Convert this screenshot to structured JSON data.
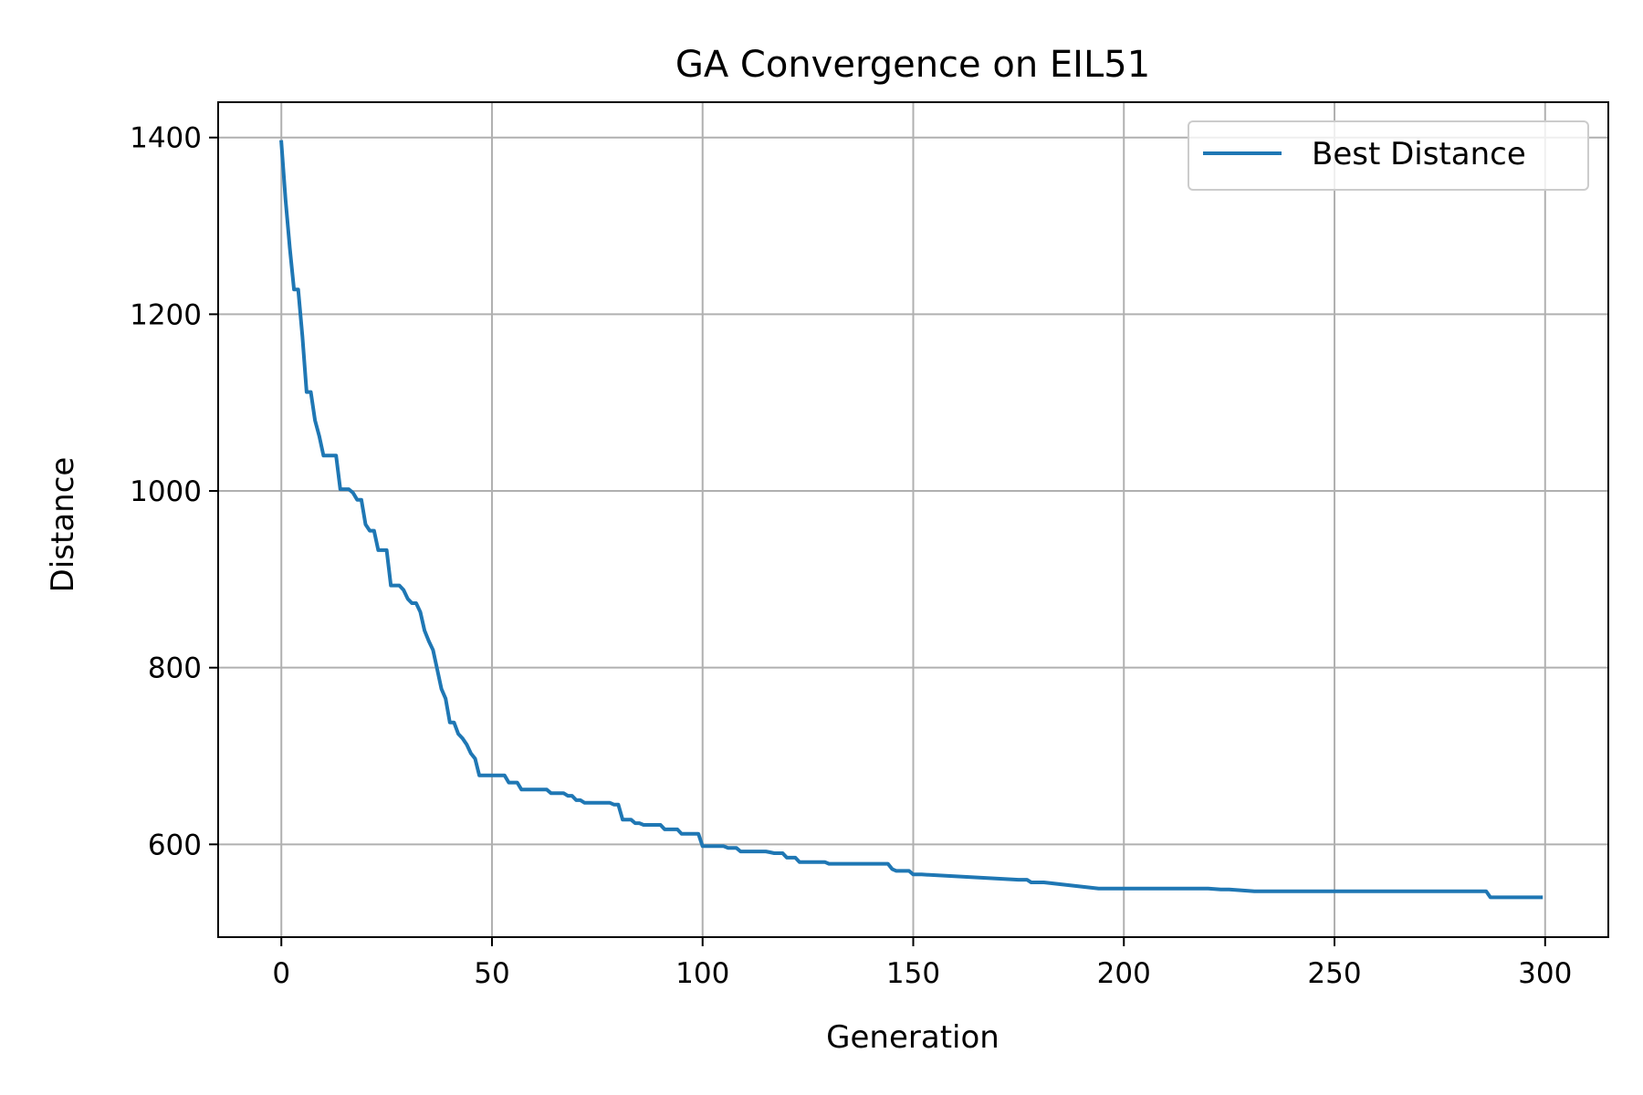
{
  "chart_data": {
    "type": "line",
    "title": "GA Convergence on EIL51",
    "xlabel": "Generation",
    "ylabel": "Distance",
    "xlim": [
      -15,
      315
    ],
    "ylim": [
      495,
      1440
    ],
    "xticks": [
      0,
      50,
      100,
      150,
      200,
      250,
      300
    ],
    "yticks": [
      600,
      800,
      1000,
      1200,
      1400
    ],
    "grid": true,
    "legend_position": "top-right",
    "colors": {
      "series": "#1f77b4"
    },
    "series": [
      {
        "name": "Best Distance",
        "x": [
          0,
          1,
          2,
          3,
          4,
          5,
          6,
          7,
          8,
          9,
          10,
          11,
          12,
          13,
          14,
          15,
          16,
          17,
          18,
          19,
          20,
          21,
          22,
          23,
          24,
          25,
          26,
          27,
          28,
          29,
          30,
          31,
          32,
          33,
          34,
          35,
          36,
          37,
          38,
          39,
          40,
          41,
          42,
          43,
          44,
          45,
          46,
          47,
          48,
          49,
          50,
          51,
          52,
          53,
          54,
          55,
          56,
          57,
          58,
          59,
          60,
          61,
          62,
          63,
          64,
          65,
          66,
          67,
          68,
          69,
          70,
          71,
          72,
          73,
          74,
          75,
          76,
          77,
          78,
          79,
          80,
          81,
          82,
          83,
          84,
          85,
          86,
          87,
          88,
          89,
          90,
          91,
          92,
          93,
          94,
          95,
          96,
          97,
          98,
          99,
          100,
          105,
          106,
          107,
          108,
          109,
          110,
          115,
          116,
          117,
          118,
          119,
          120,
          121,
          122,
          123,
          124,
          125,
          126,
          129,
          130,
          131,
          144,
          145,
          146,
          147,
          149,
          150,
          151,
          152,
          175,
          176,
          177,
          178,
          180,
          181,
          194,
          195,
          196,
          220,
          223,
          224,
          225,
          231,
          232,
          233,
          286,
          287,
          288,
          299
        ],
        "values": [
          1395,
          1330,
          1275,
          1228,
          1228,
          1175,
          1112,
          1112,
          1080,
          1062,
          1040,
          1040,
          1040,
          1040,
          1002,
          1002,
          1002,
          998,
          990,
          990,
          962,
          955,
          955,
          933,
          933,
          933,
          893,
          893,
          893,
          888,
          878,
          873,
          873,
          863,
          842,
          830,
          820,
          798,
          776,
          765,
          738,
          738,
          725,
          720,
          713,
          703,
          697,
          678,
          678,
          678,
          678,
          678,
          678,
          678,
          670,
          670,
          670,
          662,
          662,
          662,
          662,
          662,
          662,
          662,
          658,
          658,
          658,
          658,
          655,
          655,
          650,
          650,
          647,
          647,
          647,
          647,
          647,
          647,
          647,
          645,
          645,
          628,
          628,
          628,
          624,
          624,
          622,
          622,
          622,
          622,
          622,
          617,
          617,
          617,
          617,
          612,
          612,
          612,
          612,
          612,
          598,
          598,
          596,
          596,
          596,
          592,
          592,
          592,
          591,
          590,
          590,
          590,
          585,
          585,
          585,
          580,
          580,
          580,
          580,
          580,
          578,
          578,
          578,
          572,
          570,
          570,
          570,
          566,
          566,
          566,
          560,
          560,
          560,
          557,
          557,
          557,
          550,
          550,
          550,
          550,
          549,
          549,
          549,
          547,
          547,
          547,
          547,
          540,
          540,
          540
        ]
      }
    ]
  }
}
